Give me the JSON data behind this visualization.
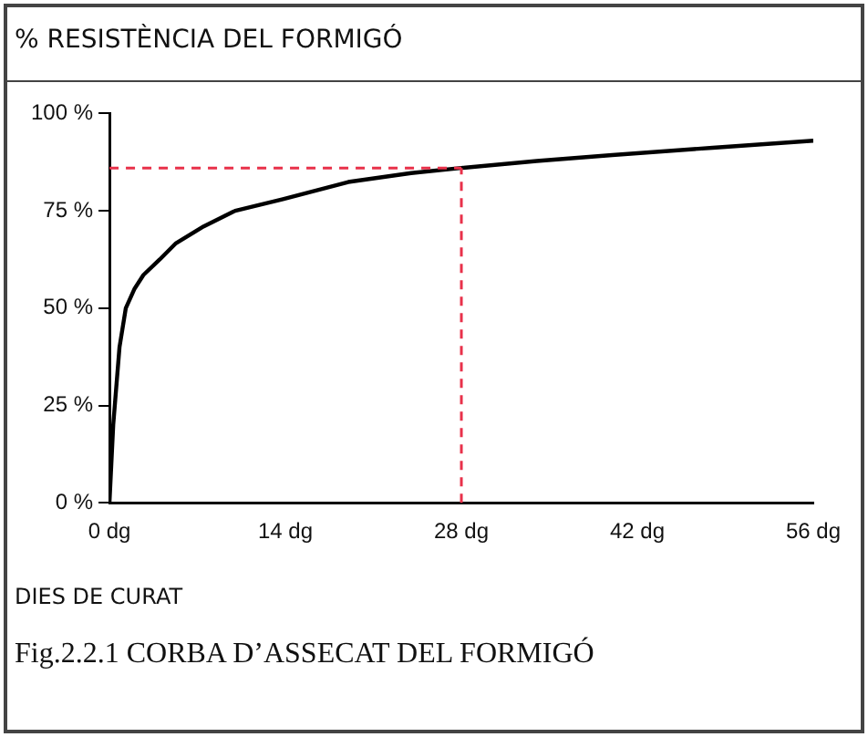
{
  "chart_data": {
    "type": "line",
    "title": "% RESISTÈNCIA DEL FORMIGÓ",
    "xlabel": "DIES DE CURAT",
    "annotations": [
      "Fig.2.2.1 CORBA D’ASSECAT  DEL FORMIGÓ"
    ],
    "x": [
      0,
      0.3,
      0.8,
      1.3,
      2,
      2.7,
      4,
      5.3,
      7.5,
      10,
      13.8,
      19,
      24,
      28,
      34,
      40,
      48,
      56
    ],
    "series": [
      {
        "color": "#000000",
        "values": [
          0,
          20,
          40,
          50,
          55,
          58.5,
          62.5,
          66.7,
          71,
          75,
          78,
          82.4,
          84.7,
          86,
          87.8,
          89.3,
          91.2,
          93
        ]
      }
    ],
    "xlim": [
      0,
      56
    ],
    "xticks": [
      {
        "value": 0,
        "label": "0 dg"
      },
      {
        "value": 14,
        "label": "14 dg"
      },
      {
        "value": 28,
        "label": "28 dg"
      },
      {
        "value": 42,
        "label": "42 dg"
      },
      {
        "value": 56,
        "label": "56 dg"
      }
    ],
    "ylim": [
      0,
      100
    ],
    "yticks": [
      {
        "value": 0,
        "label": "0 %"
      },
      {
        "value": 25,
        "label": "25 %"
      },
      {
        "value": 50,
        "label": "50 %"
      },
      {
        "value": 75,
        "label": "75 %"
      },
      {
        "value": 100,
        "label": "100 %"
      }
    ],
    "ref_lines": [
      {
        "axis": "x",
        "value": 28,
        "color": "#e8314a",
        "line_style": "dashed"
      },
      {
        "axis": "y",
        "value": 86,
        "color": "#e8314a",
        "line_style": "dashed"
      }
    ],
    "grid": false,
    "legend": false,
    "marker": "none",
    "line_style": "solid"
  }
}
